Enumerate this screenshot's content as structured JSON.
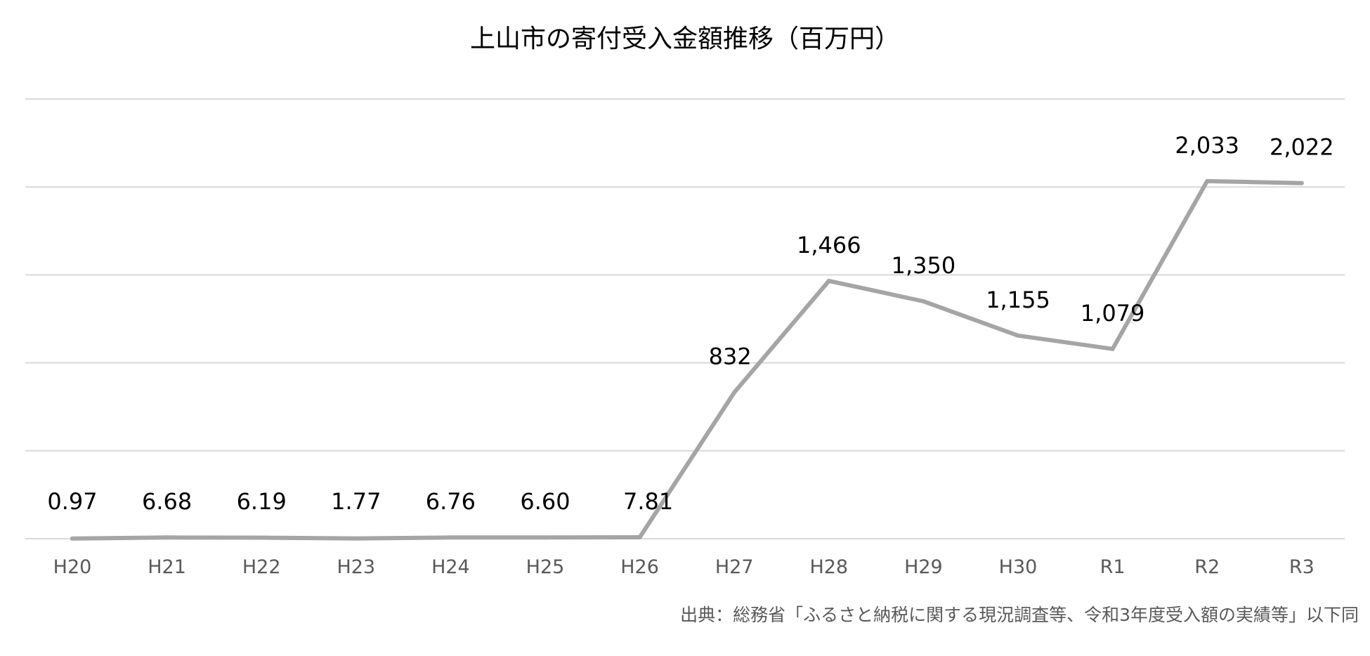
{
  "chart_data": {
    "type": "line",
    "title": "上山市の寄付受入金額推移（百万円）",
    "categories": [
      "H20",
      "H21",
      "H22",
      "H23",
      "H24",
      "H25",
      "H26",
      "H27",
      "H28",
      "H29",
      "H30",
      "R1",
      "R2",
      "R3"
    ],
    "series": [
      {
        "values": [
          0.97,
          6.68,
          6.19,
          1.77,
          6.76,
          6.6,
          7.81,
          832,
          1466,
          1350,
          1155,
          1079,
          2033,
          2022
        ],
        "labels": [
          "0.97",
          "6.68",
          "6.19",
          "1.77",
          "6.76",
          "6.60",
          "7.81",
          "832",
          "1,466",
          "1,350",
          "1,155",
          "1,079",
          "2,033",
          "2,022"
        ],
        "color": "#a5a5a5"
      }
    ],
    "ylim": [
      0,
      2500
    ],
    "gridlines": [
      0,
      500,
      1000,
      1500,
      2000,
      2500
    ],
    "grid": true,
    "legend": "none",
    "xlabel": "",
    "ylabel": ""
  },
  "source_note": "出典：総務省「ふるさと納税に関する現況調査等、令和3年度受入額の実績等」以下同"
}
